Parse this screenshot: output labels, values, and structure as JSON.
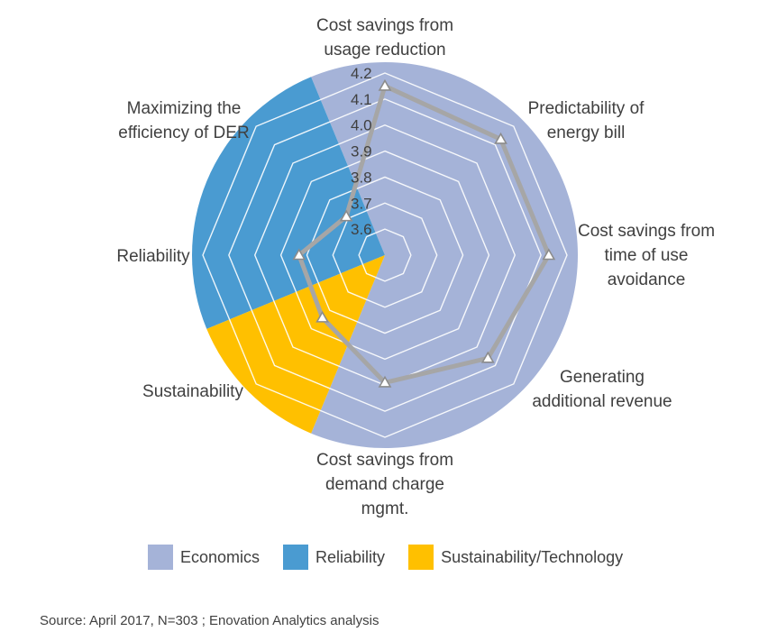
{
  "chart_data": {
    "type": "radar",
    "title": "",
    "axes": [
      "Cost savings from usage reduction",
      "Predictability of energy bill",
      "Cost savings from time of use avoidance",
      "Generating additional revenue",
      "Cost savings from demand charge mgmt.",
      "Sustainability",
      "Reliability",
      "Maximizing the efficiency of DER"
    ],
    "axis_label_lines": [
      [
        "Cost savings from",
        "usage reduction"
      ],
      [
        "Predictability of",
        "energy bill"
      ],
      [
        "Cost savings from",
        "time of use",
        "avoidance"
      ],
      [
        "Generating",
        "additional revenue"
      ],
      [
        "Cost savings from",
        "demand charge",
        "mgmt."
      ],
      [
        "Sustainability"
      ],
      [
        "Reliability"
      ],
      [
        "Maximizing the",
        "efficiency of DER"
      ]
    ],
    "values": [
      4.15,
      4.13,
      4.13,
      4.06,
      3.99,
      3.84,
      3.83,
      3.71
    ],
    "r_min": 3.5,
    "r_max": 4.2,
    "ticks": [
      3.6,
      3.7,
      3.8,
      3.9,
      4.0,
      4.1,
      4.2
    ],
    "tick_labels": [
      "3.6",
      "3.7",
      "3.8",
      "3.9",
      "4.0",
      "4.1",
      "4.2"
    ],
    "grid": true,
    "legend_position": "bottom",
    "categories_bands": [
      {
        "name": "Economics",
        "color": "#a5b3d8",
        "from_deg": 337.5,
        "to_deg": 562.5
      },
      {
        "name": "Reliability",
        "color": "#4a9bd1",
        "from_deg": 247.5,
        "to_deg": 337.5
      },
      {
        "name": "Sustainability/Technology",
        "color": "#ffc000",
        "from_deg": 202.5,
        "to_deg": 247.5
      }
    ],
    "series_color": "#a6a6a6"
  },
  "legend": {
    "items": [
      {
        "label": "Economics",
        "color": "#a5b3d8"
      },
      {
        "label": "Reliability",
        "color": "#4a9bd1"
      },
      {
        "label": "Sustainability/Technology",
        "color": "#ffc000"
      }
    ]
  },
  "source": "Source: April 2017, N=303 ; Enovation Analytics analysis"
}
